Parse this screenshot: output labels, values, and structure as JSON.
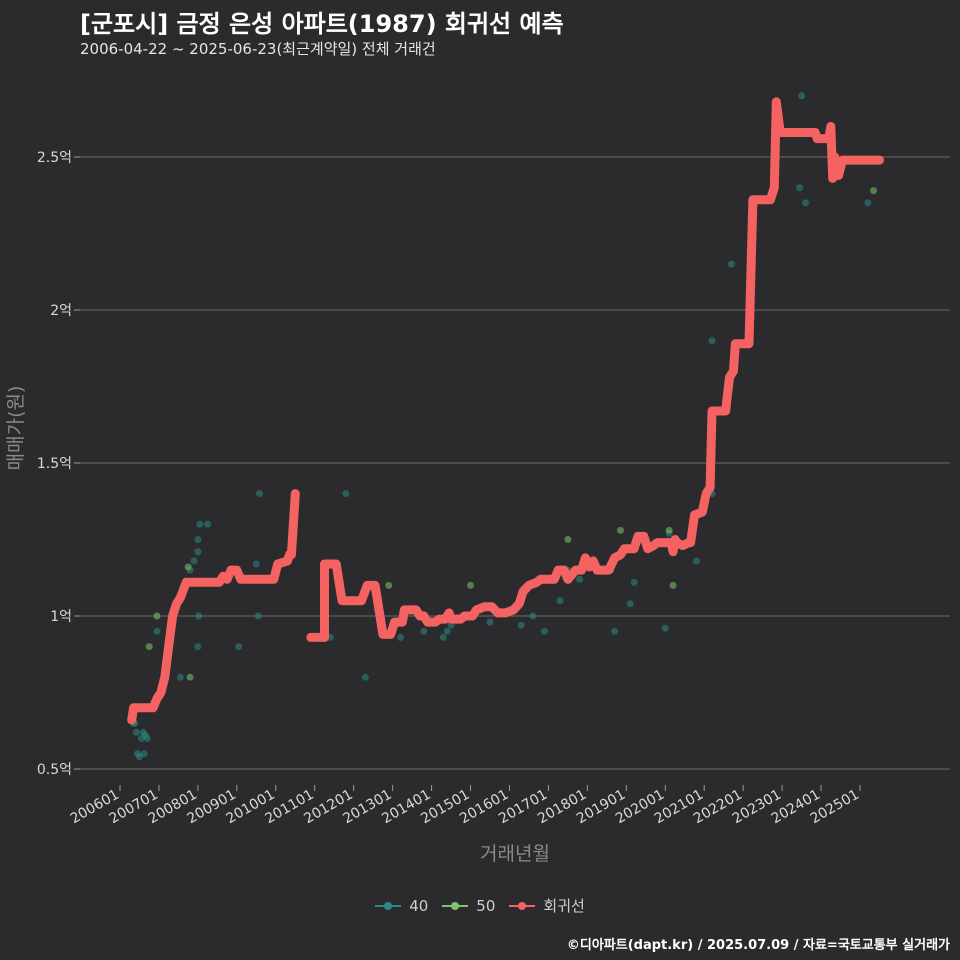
{
  "title": "[군포시] 금정 은성 아파트(1987) 회귀선 예측",
  "subtitle": "2006-04-22 ~ 2025-06-23(최근계약일) 전체 거래건",
  "caption": "©디아파트(dapt.kr) / 2025.07.09 / 자료=국토교통부 실거래가",
  "colors": {
    "background": "#2b2b2d",
    "grid": "#6b6b6b",
    "s40": "#2a8a86",
    "s50": "#7dc46a",
    "regression": "#f46262"
  },
  "legend": [
    {
      "label": "40",
      "color": "#2a8a86"
    },
    {
      "label": "50",
      "color": "#7dc46a"
    },
    {
      "label": "회귀선",
      "color": "#f46262"
    }
  ],
  "chart_data": {
    "type": "scatter",
    "title": "[군포시] 금정 은성 아파트(1987) 회귀선 예측",
    "xlabel": "거래년월",
    "ylabel": "매매가(원)",
    "xlim": [
      2006.0,
      2026.0
    ],
    "ylim": [
      0.45,
      2.8
    ],
    "y_ticks": [
      0.5,
      1,
      1.5,
      2,
      2.5
    ],
    "y_tick_labels": [
      "0.5억",
      "1억",
      "1.5억",
      "2억",
      "2.5억"
    ],
    "x_ticks": [
      2006.0,
      2007.0,
      2008.0,
      2009.0,
      2010.0,
      2011.0,
      2012.0,
      2013.0,
      2014.0,
      2015.0,
      2016.0,
      2017.0,
      2018.0,
      2019.0,
      2020.0,
      2021.0,
      2022.0,
      2023.0,
      2024.0,
      2025.0
    ],
    "x_tick_labels": [
      "200601",
      "200701",
      "200801",
      "200901",
      "201001",
      "201101",
      "201201",
      "201301",
      "201401",
      "201501",
      "201601",
      "201701",
      "201801",
      "201901",
      "202001",
      "202101",
      "202201",
      "202301",
      "202401",
      "202501"
    ],
    "series": [
      {
        "name": "40",
        "points": [
          [
            2006.35,
            0.65
          ],
          [
            2006.42,
            0.62
          ],
          [
            2006.45,
            0.55
          ],
          [
            2006.5,
            0.54
          ],
          [
            2006.55,
            0.6
          ],
          [
            2006.6,
            0.62
          ],
          [
            2006.62,
            0.55
          ],
          [
            2006.65,
            0.61
          ],
          [
            2006.7,
            0.6
          ],
          [
            2006.38,
            0.65
          ],
          [
            2006.95,
            0.95
          ],
          [
            2007.55,
            0.8
          ],
          [
            2007.8,
            1.15
          ],
          [
            2007.9,
            1.18
          ],
          [
            2008.0,
            1.25
          ],
          [
            2008.05,
            1.3
          ],
          [
            2008.0,
            1.21
          ],
          [
            2008.02,
            1.0
          ],
          [
            2008.0,
            0.9
          ],
          [
            2008.25,
            1.3
          ],
          [
            2009.05,
            0.9
          ],
          [
            2009.5,
            1.17
          ],
          [
            2009.55,
            1.0
          ],
          [
            2009.58,
            1.4
          ],
          [
            2011.4,
            0.93
          ],
          [
            2011.8,
            1.4
          ],
          [
            2012.3,
            0.8
          ],
          [
            2013.2,
            0.93
          ],
          [
            2013.8,
            0.95
          ],
          [
            2014.3,
            0.93
          ],
          [
            2014.4,
            0.95
          ],
          [
            2014.5,
            0.97
          ],
          [
            2015.0,
            1.0
          ],
          [
            2015.5,
            0.98
          ],
          [
            2016.3,
            0.97
          ],
          [
            2016.6,
            1.0
          ],
          [
            2016.9,
            0.95
          ],
          [
            2017.3,
            1.05
          ],
          [
            2017.5,
            1.15
          ],
          [
            2017.8,
            1.12
          ],
          [
            2018.6,
            1.15
          ],
          [
            2018.7,
            0.95
          ],
          [
            2019.1,
            1.04
          ],
          [
            2019.2,
            1.11
          ],
          [
            2020.0,
            0.96
          ],
          [
            2020.1,
            1.27
          ],
          [
            2020.8,
            1.18
          ],
          [
            2021.2,
            1.4
          ],
          [
            2021.7,
            2.15
          ],
          [
            2021.2,
            1.9
          ],
          [
            2023.45,
            2.4
          ],
          [
            2023.5,
            2.7
          ],
          [
            2023.6,
            2.35
          ],
          [
            2025.2,
            2.35
          ]
        ]
      },
      {
        "name": "50",
        "points": [
          [
            2006.75,
            0.9
          ],
          [
            2006.95,
            1.0
          ],
          [
            2007.8,
            0.8
          ],
          [
            2007.75,
            1.16
          ],
          [
            2012.9,
            1.1
          ],
          [
            2015.0,
            1.1
          ],
          [
            2017.5,
            1.25
          ],
          [
            2018.85,
            1.28
          ],
          [
            2020.2,
            1.1
          ],
          [
            2020.1,
            1.28
          ],
          [
            2025.35,
            2.39
          ]
        ]
      }
    ],
    "regression_segments": [
      [
        [
          2006.3,
          0.66
        ],
        [
          2006.35,
          0.7
        ],
        [
          2006.85,
          0.7
        ],
        [
          2006.95,
          0.73
        ],
        [
          2007.05,
          0.75
        ],
        [
          2007.15,
          0.8
        ],
        [
          2007.2,
          0.85
        ],
        [
          2007.3,
          0.95
        ],
        [
          2007.35,
          1.0
        ],
        [
          2007.45,
          1.04
        ],
        [
          2007.55,
          1.06
        ],
        [
          2007.7,
          1.11
        ],
        [
          2008.55,
          1.11
        ],
        [
          2008.65,
          1.13
        ],
        [
          2008.75,
          1.12
        ],
        [
          2008.85,
          1.15
        ],
        [
          2009.0,
          1.15
        ],
        [
          2009.1,
          1.12
        ],
        [
          2009.95,
          1.12
        ],
        [
          2010.05,
          1.17
        ],
        [
          2010.3,
          1.18
        ],
        [
          2010.35,
          1.2
        ],
        [
          2010.4,
          1.2
        ],
        [
          2010.5,
          1.4
        ]
      ],
      [
        [
          2010.9,
          0.93
        ],
        [
          2011.25,
          0.93
        ],
        [
          2011.25,
          1.17
        ],
        [
          2011.55,
          1.17
        ],
        [
          2011.7,
          1.05
        ],
        [
          2012.2,
          1.05
        ],
        [
          2012.35,
          1.1
        ],
        [
          2012.55,
          1.1
        ],
        [
          2012.75,
          0.94
        ],
        [
          2012.95,
          0.94
        ],
        [
          2013.05,
          0.98
        ],
        [
          2013.25,
          0.98
        ],
        [
          2013.3,
          1.02
        ],
        [
          2013.6,
          1.02
        ],
        [
          2013.7,
          1.0
        ],
        [
          2013.8,
          1.0
        ],
        [
          2013.9,
          0.98
        ],
        [
          2014.1,
          0.98
        ],
        [
          2014.2,
          0.99
        ],
        [
          2014.35,
          0.99
        ],
        [
          2014.45,
          1.01
        ],
        [
          2014.5,
          0.99
        ],
        [
          2014.75,
          0.99
        ],
        [
          2014.85,
          1.0
        ],
        [
          2015.05,
          1.0
        ],
        [
          2015.15,
          1.02
        ],
        [
          2015.35,
          1.03
        ],
        [
          2015.55,
          1.03
        ],
        [
          2015.7,
          1.01
        ],
        [
          2015.9,
          1.01
        ],
        [
          2016.1,
          1.02
        ],
        [
          2016.25,
          1.04
        ],
        [
          2016.35,
          1.08
        ],
        [
          2016.5,
          1.1
        ],
        [
          2016.7,
          1.11
        ],
        [
          2016.8,
          1.12
        ],
        [
          2017.15,
          1.12
        ],
        [
          2017.25,
          1.15
        ],
        [
          2017.4,
          1.15
        ],
        [
          2017.5,
          1.12
        ],
        [
          2017.7,
          1.15
        ],
        [
          2017.85,
          1.15
        ],
        [
          2017.95,
          1.19
        ],
        [
          2018.05,
          1.16
        ],
        [
          2018.15,
          1.18
        ],
        [
          2018.25,
          1.15
        ],
        [
          2018.55,
          1.15
        ],
        [
          2018.7,
          1.19
        ],
        [
          2018.85,
          1.2
        ],
        [
          2018.95,
          1.22
        ],
        [
          2019.2,
          1.22
        ],
        [
          2019.3,
          1.26
        ],
        [
          2019.45,
          1.26
        ],
        [
          2019.55,
          1.22
        ],
        [
          2019.7,
          1.23
        ],
        [
          2019.8,
          1.24
        ],
        [
          2020.15,
          1.24
        ],
        [
          2020.2,
          1.21
        ],
        [
          2020.25,
          1.25
        ],
        [
          2020.3,
          1.24
        ],
        [
          2020.45,
          1.23
        ],
        [
          2020.6,
          1.24
        ],
        [
          2020.65,
          1.24
        ],
        [
          2020.75,
          1.33
        ],
        [
          2020.95,
          1.34
        ],
        [
          2021.05,
          1.4
        ],
        [
          2021.15,
          1.42
        ],
        [
          2021.2,
          1.67
        ],
        [
          2021.55,
          1.67
        ],
        [
          2021.65,
          1.78
        ],
        [
          2021.75,
          1.8
        ],
        [
          2021.8,
          1.89
        ],
        [
          2022.15,
          1.89
        ],
        [
          2022.25,
          2.36
        ],
        [
          2022.7,
          2.36
        ],
        [
          2022.8,
          2.4
        ],
        [
          2022.85,
          2.68
        ],
        [
          2022.95,
          2.58
        ],
        [
          2023.85,
          2.58
        ],
        [
          2023.9,
          2.56
        ],
        [
          2024.2,
          2.56
        ],
        [
          2024.25,
          2.6
        ],
        [
          2024.3,
          2.43
        ],
        [
          2024.35,
          2.5
        ],
        [
          2024.45,
          2.44
        ],
        [
          2024.55,
          2.49
        ],
        [
          2025.2,
          2.49
        ],
        [
          2025.5,
          2.49
        ]
      ]
    ]
  }
}
